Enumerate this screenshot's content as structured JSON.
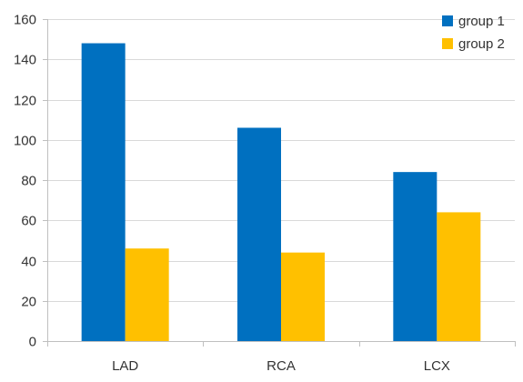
{
  "chart_data": {
    "type": "bar",
    "title": "",
    "xlabel": "",
    "ylabel": "",
    "categories": [
      "LAD",
      "RCA",
      "LCX"
    ],
    "series": [
      {
        "name": "group 1",
        "values": [
          148,
          106,
          84
        ],
        "color": "#0070C0"
      },
      {
        "name": "group 2",
        "values": [
          46,
          44,
          64
        ],
        "color": "#FFC000"
      }
    ],
    "ylim": [
      0,
      160
    ],
    "yticks": [
      0,
      20,
      40,
      60,
      80,
      100,
      120,
      140,
      160
    ],
    "grid": true,
    "legend_position": "top-right",
    "gridline_color": "#d9d9d9"
  }
}
